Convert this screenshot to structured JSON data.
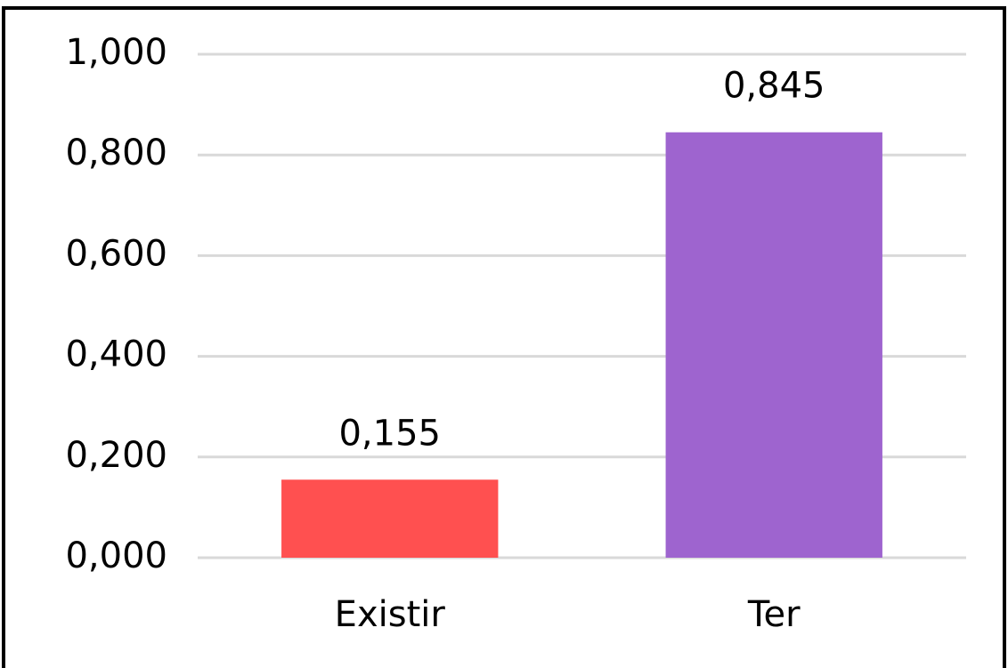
{
  "chart_data": {
    "type": "bar",
    "categories": [
      "Existir",
      "Ter"
    ],
    "values": [
      0.155,
      0.845
    ],
    "value_labels": [
      "0,155",
      "0,845"
    ],
    "colors": [
      "#ff5050",
      "#9e64cf"
    ],
    "ylim": [
      0,
      1
    ],
    "yticks": [
      {
        "value": 0,
        "label": "0,000"
      },
      {
        "value": 0.2,
        "label": "0,200"
      },
      {
        "value": 0.4,
        "label": "0,400"
      },
      {
        "value": 0.6,
        "label": "0,600"
      },
      {
        "value": 0.8,
        "label": "0,800"
      },
      {
        "value": 1,
        "label": "1,000"
      }
    ],
    "grid": true
  }
}
